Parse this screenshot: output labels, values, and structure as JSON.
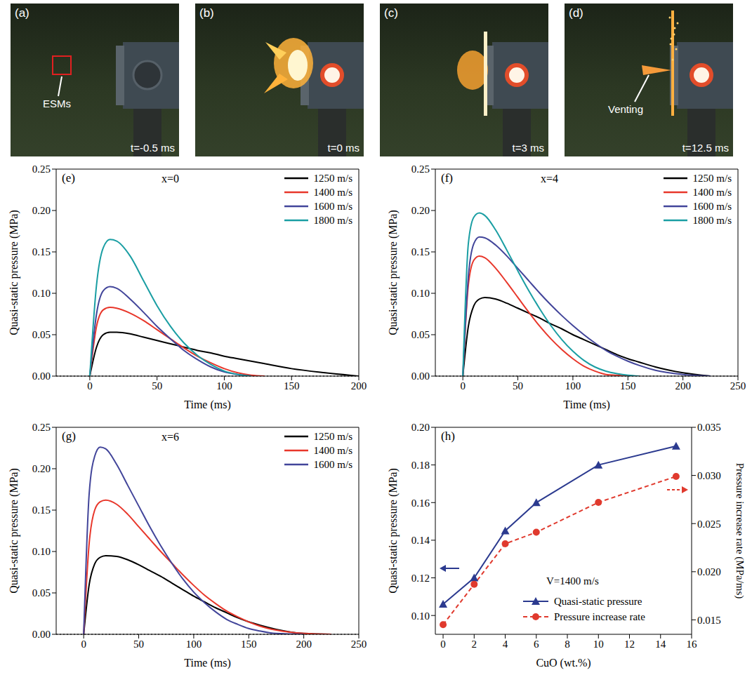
{
  "photos": [
    {
      "panel": "(a)",
      "time": "t=-0.5 ms",
      "annotation": "ESMs"
    },
    {
      "panel": "(b)",
      "time": "t=0 ms"
    },
    {
      "panel": "(c)",
      "time": "t=3 ms"
    },
    {
      "panel": "(d)",
      "time": "t=12.5 ms",
      "annotation": "Venting"
    }
  ],
  "chart_data": [
    {
      "panel": "(e)",
      "type": "line",
      "annotation": "x=0",
      "xlabel": "Time (ms)",
      "ylabel": "Quasi-static pressure (MPa)",
      "legend": "upper right",
      "baseline": 0,
      "xlim": [
        -25,
        200
      ],
      "xticks": [
        0,
        50,
        100,
        150,
        200
      ],
      "ylim": [
        0,
        0.25
      ],
      "yticks": [
        {
          "value": 0,
          "label": "0.00"
        },
        {
          "value": 0.05,
          "label": "0.05"
        },
        {
          "value": 0.1,
          "label": "0.10"
        },
        {
          "value": 0.15,
          "label": "0.15"
        },
        {
          "value": 0.2,
          "label": "0.20"
        },
        {
          "value": 0.25,
          "label": "0.25"
        }
      ],
      "x": [
        0,
        5,
        10,
        15,
        20,
        30,
        40,
        50,
        60,
        70,
        80,
        90,
        100,
        110,
        120,
        130,
        150,
        175,
        200
      ],
      "series": [
        {
          "name": "1250 m/s",
          "color": "#000000",
          "values": [
            0,
            0.035,
            0.05,
            0.053,
            0.053,
            0.051,
            0.047,
            0.043,
            0.039,
            0.035,
            0.031,
            0.028,
            0.024,
            0.021,
            0.018,
            0.015,
            0.009,
            0.004,
            0.0
          ]
        },
        {
          "name": "1400 m/s",
          "color": "#e8372b",
          "values": [
            0,
            0.06,
            0.08,
            0.083,
            0.082,
            0.076,
            0.067,
            0.056,
            0.045,
            0.034,
            0.024,
            0.016,
            0.009,
            0.004,
            0.001,
            0.0,
            null,
            null,
            null
          ]
        },
        {
          "name": "1600 m/s",
          "color": "#42459a",
          "values": [
            0,
            0.075,
            0.103,
            0.108,
            0.106,
            0.093,
            0.077,
            0.06,
            0.045,
            0.031,
            0.02,
            0.011,
            0.005,
            0.002,
            0.0,
            null,
            null,
            null,
            null
          ]
        },
        {
          "name": "1800 m/s",
          "color": "#1a9ea3",
          "values": [
            0,
            0.11,
            0.155,
            0.165,
            0.163,
            0.145,
            0.115,
            0.085,
            0.06,
            0.04,
            0.025,
            0.014,
            0.006,
            0.002,
            0.0,
            null,
            null,
            null,
            null
          ]
        }
      ]
    },
    {
      "panel": "(f)",
      "type": "line",
      "annotation": "x=4",
      "xlabel": "Time (ms)",
      "ylabel": "Quasi-static pressure (MPa)",
      "legend": "upper right",
      "baseline": 0,
      "xlim": [
        -25,
        250
      ],
      "xticks": [
        0,
        50,
        100,
        150,
        200,
        250
      ],
      "ylim": [
        0,
        0.25
      ],
      "yticks": [
        {
          "value": 0,
          "label": "0.00"
        },
        {
          "value": 0.05,
          "label": "0.05"
        },
        {
          "value": 0.1,
          "label": "0.10"
        },
        {
          "value": 0.15,
          "label": "0.15"
        },
        {
          "value": 0.2,
          "label": "0.20"
        },
        {
          "value": 0.25,
          "label": "0.25"
        }
      ],
      "x": [
        0,
        5,
        10,
        15,
        20,
        30,
        40,
        50,
        60,
        70,
        80,
        90,
        100,
        110,
        120,
        130,
        140,
        150,
        160,
        175,
        200,
        225,
        250
      ],
      "series": [
        {
          "name": "1250 m/s",
          "color": "#000000",
          "values": [
            0,
            0.06,
            0.085,
            0.093,
            0.095,
            0.093,
            0.088,
            0.082,
            0.076,
            0.07,
            0.063,
            0.057,
            0.05,
            0.044,
            0.038,
            0.032,
            0.026,
            0.021,
            0.017,
            0.011,
            0.004,
            0.0,
            null
          ]
        },
        {
          "name": "1400 m/s",
          "color": "#e8372b",
          "values": [
            0,
            0.11,
            0.14,
            0.145,
            0.143,
            0.13,
            0.113,
            0.095,
            0.077,
            0.06,
            0.045,
            0.032,
            0.021,
            0.012,
            0.006,
            0.002,
            0.001,
            0.0,
            null,
            null,
            null,
            null,
            null
          ]
        },
        {
          "name": "1600 m/s",
          "color": "#42459a",
          "values": [
            0,
            0.12,
            0.16,
            0.168,
            0.167,
            0.158,
            0.145,
            0.13,
            0.115,
            0.1,
            0.086,
            0.073,
            0.061,
            0.05,
            0.04,
            0.031,
            0.024,
            0.018,
            0.013,
            0.007,
            0.002,
            0.0,
            null
          ]
        },
        {
          "name": "1800 m/s",
          "color": "#1a9ea3",
          "values": [
            0,
            0.16,
            0.192,
            0.197,
            0.194,
            0.176,
            0.152,
            0.127,
            0.103,
            0.081,
            0.061,
            0.044,
            0.03,
            0.019,
            0.011,
            0.006,
            0.003,
            0.001,
            0.0,
            null,
            null,
            null,
            null
          ]
        }
      ]
    },
    {
      "panel": "(g)",
      "type": "line",
      "annotation": "x=6",
      "xlabel": "Time (ms)",
      "ylabel": "Quasi-static pressure (MPa)",
      "legend": "upper right",
      "baseline": 0,
      "xlim": [
        -25,
        250
      ],
      "xticks": [
        0,
        50,
        100,
        150,
        200,
        250
      ],
      "ylim": [
        0,
        0.25
      ],
      "yticks": [
        {
          "value": 0,
          "label": "0.00"
        },
        {
          "value": 0.05,
          "label": "0.05"
        },
        {
          "value": 0.1,
          "label": "0.10"
        },
        {
          "value": 0.15,
          "label": "0.15"
        },
        {
          "value": 0.2,
          "label": "0.20"
        },
        {
          "value": 0.25,
          "label": "0.25"
        }
      ],
      "x": [
        0,
        5,
        10,
        15,
        20,
        30,
        40,
        50,
        60,
        70,
        80,
        90,
        100,
        110,
        120,
        130,
        140,
        150,
        160,
        175,
        200,
        225,
        250
      ],
      "series": [
        {
          "name": "1250 m/s",
          "color": "#000000",
          "values": [
            0,
            0.06,
            0.085,
            0.093,
            0.095,
            0.094,
            0.09,
            0.084,
            0.077,
            0.07,
            0.062,
            0.054,
            0.046,
            0.039,
            0.032,
            0.026,
            0.02,
            0.015,
            0.011,
            0.006,
            0.001,
            0.0,
            null
          ]
        },
        {
          "name": "1400 m/s",
          "color": "#e8372b",
          "values": [
            0,
            0.11,
            0.15,
            0.16,
            0.162,
            0.157,
            0.145,
            0.13,
            0.115,
            0.1,
            0.086,
            0.072,
            0.059,
            0.047,
            0.037,
            0.028,
            0.021,
            0.015,
            0.01,
            0.005,
            0.001,
            0.0,
            null
          ]
        },
        {
          "name": "1600 m/s",
          "color": "#42459a",
          "values": [
            0,
            0.17,
            0.215,
            0.226,
            0.224,
            0.205,
            0.18,
            0.155,
            0.13,
            0.107,
            0.086,
            0.067,
            0.051,
            0.038,
            0.027,
            0.018,
            0.012,
            0.007,
            0.004,
            0.001,
            0.0,
            null,
            null
          ]
        }
      ]
    },
    {
      "panel": "(h)",
      "type": "line",
      "annotation": "V=1400 m/s",
      "xlabel": "CuO (wt.%)",
      "ylabel": "Quasi-static pressure (MPa)",
      "y2label": "Pressure increase rate (MPa/ms)",
      "legend": "lower right",
      "xlim": [
        -0.5,
        16
      ],
      "xticks": [
        0,
        2,
        4,
        6,
        8,
        10,
        12,
        14,
        16
      ],
      "ylim": [
        0.09,
        0.2
      ],
      "yticks": [
        {
          "value": 0.1,
          "label": "0.10"
        },
        {
          "value": 0.12,
          "label": "0.12"
        },
        {
          "value": 0.14,
          "label": "0.14"
        },
        {
          "value": 0.16,
          "label": "0.16"
        },
        {
          "value": 0.18,
          "label": "0.18"
        },
        {
          "value": 0.2,
          "label": "0.20"
        }
      ],
      "y2lim": [
        0.0135,
        0.035
      ],
      "y2ticks": [
        0.015,
        {
          "value": 0.02,
          "label": "0.020"
        },
        0.025,
        {
          "value": 0.03,
          "label": "0.030"
        },
        0.035
      ],
      "x": [
        0,
        2,
        4,
        6,
        10,
        15
      ],
      "series": [
        {
          "name": "Quasi-static pressure",
          "color": "#2b3a8f",
          "marker": "triangle",
          "line_style": "solid",
          "values": [
            0.106,
            0.12,
            0.145,
            0.16,
            0.18,
            0.19
          ]
        },
        {
          "name": "Pressure increase rate",
          "color": "#e03a2e",
          "marker": "circle",
          "line_style": "dashed",
          "axis": "y2",
          "values": [
            0.0145,
            0.0187,
            0.0229,
            0.0241,
            0.0272,
            0.0299
          ]
        }
      ]
    }
  ]
}
